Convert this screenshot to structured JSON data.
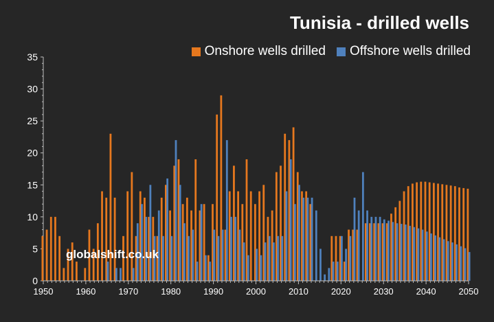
{
  "colors": {
    "background": "#262626",
    "onshore": "#e6781e",
    "offshore": "#4f81bd",
    "axis": "#bfbfbf",
    "text": "#ffffff"
  },
  "title": "Tunisia - drilled wells",
  "watermark": "globalshift.co.uk",
  "legend": {
    "placement": "top-right",
    "items": [
      "Onshore wells drilled",
      "Offshore wells drilled"
    ]
  },
  "chart_data": {
    "type": "bar",
    "title": "Tunisia - drilled wells",
    "xlabel": "",
    "ylabel": "",
    "ylim": [
      0,
      35
    ],
    "xlim": [
      1950,
      2050
    ],
    "grid": false,
    "y_ticks": [
      0,
      5,
      10,
      15,
      20,
      25,
      30,
      35
    ],
    "x_ticks": [
      1950,
      1960,
      1970,
      1980,
      1990,
      2000,
      2010,
      2020,
      2030,
      2040,
      2050
    ],
    "x": [
      1950,
      1951,
      1952,
      1953,
      1954,
      1955,
      1956,
      1957,
      1958,
      1959,
      1960,
      1961,
      1962,
      1963,
      1964,
      1965,
      1966,
      1967,
      1968,
      1969,
      1970,
      1971,
      1972,
      1973,
      1974,
      1975,
      1976,
      1977,
      1978,
      1979,
      1980,
      1981,
      1982,
      1983,
      1984,
      1985,
      1986,
      1987,
      1988,
      1989,
      1990,
      1991,
      1992,
      1993,
      1994,
      1995,
      1996,
      1997,
      1998,
      1999,
      2000,
      2001,
      2002,
      2003,
      2004,
      2005,
      2006,
      2007,
      2008,
      2009,
      2010,
      2011,
      2012,
      2013,
      2014,
      2015,
      2016,
      2017,
      2018,
      2019,
      2020,
      2021,
      2022,
      2023,
      2024,
      2025,
      2026,
      2027,
      2028,
      2029,
      2030,
      2031,
      2032,
      2033,
      2034,
      2035,
      2036,
      2037,
      2038,
      2039,
      2040,
      2041,
      2042,
      2043,
      2044,
      2045,
      2046,
      2047,
      2048,
      2049,
      2050
    ],
    "series": [
      {
        "name": "Onshore wells drilled",
        "values": [
          7,
          8,
          10,
          10,
          7,
          2,
          5,
          6,
          3,
          0,
          2,
          8,
          5,
          9,
          14,
          13,
          23,
          13,
          0,
          7,
          14,
          17,
          7,
          14,
          13,
          10,
          10,
          7,
          13,
          15,
          11,
          18,
          19,
          12,
          13,
          11,
          19,
          11,
          12,
          4,
          12,
          26,
          29,
          8,
          14,
          18,
          14,
          12,
          19,
          14,
          12,
          14,
          15,
          10,
          11,
          17,
          18,
          23,
          22,
          24,
          17,
          14,
          14,
          12,
          0,
          0,
          0,
          0,
          7,
          7,
          7,
          3,
          8,
          8,
          8,
          0,
          9,
          9,
          9,
          9,
          9,
          9,
          10.5,
          11.5,
          12.5,
          14,
          14.8,
          15.2,
          15.4,
          15.5,
          15.5,
          15.4,
          15.3,
          15.2,
          15.1,
          15.0,
          14.9,
          14.8,
          14.6,
          14.5,
          14.4
        ],
        "color": "#e6781e"
      },
      {
        "name": "Offshore wells drilled",
        "values": [
          0,
          0,
          0,
          0,
          0,
          0,
          0,
          0,
          0,
          0,
          0,
          0,
          0,
          0,
          0,
          3,
          0,
          2,
          2,
          0,
          0,
          2,
          9,
          12,
          10,
          15,
          7,
          11,
          7,
          16,
          7,
          22,
          15,
          9,
          7,
          8,
          3,
          12,
          4,
          3,
          8,
          7,
          8,
          22,
          10,
          10,
          8,
          6,
          4,
          0,
          5,
          4,
          6,
          7,
          6,
          7,
          7,
          14,
          19,
          12,
          15,
          13,
          13,
          13,
          11,
          5,
          1,
          2,
          3,
          3,
          7,
          5,
          7,
          13,
          11,
          17,
          11,
          10,
          10,
          10,
          9.6,
          9.4,
          9.2,
          9.0,
          8.9,
          8.8,
          8.6,
          8.4,
          8.2,
          8.0,
          7.7,
          7.4,
          7.1,
          6.8,
          6.5,
          6.2,
          6.0,
          5.7,
          5.4,
          5.1,
          4.5
        ],
        "color": "#4f81bd"
      }
    ]
  }
}
